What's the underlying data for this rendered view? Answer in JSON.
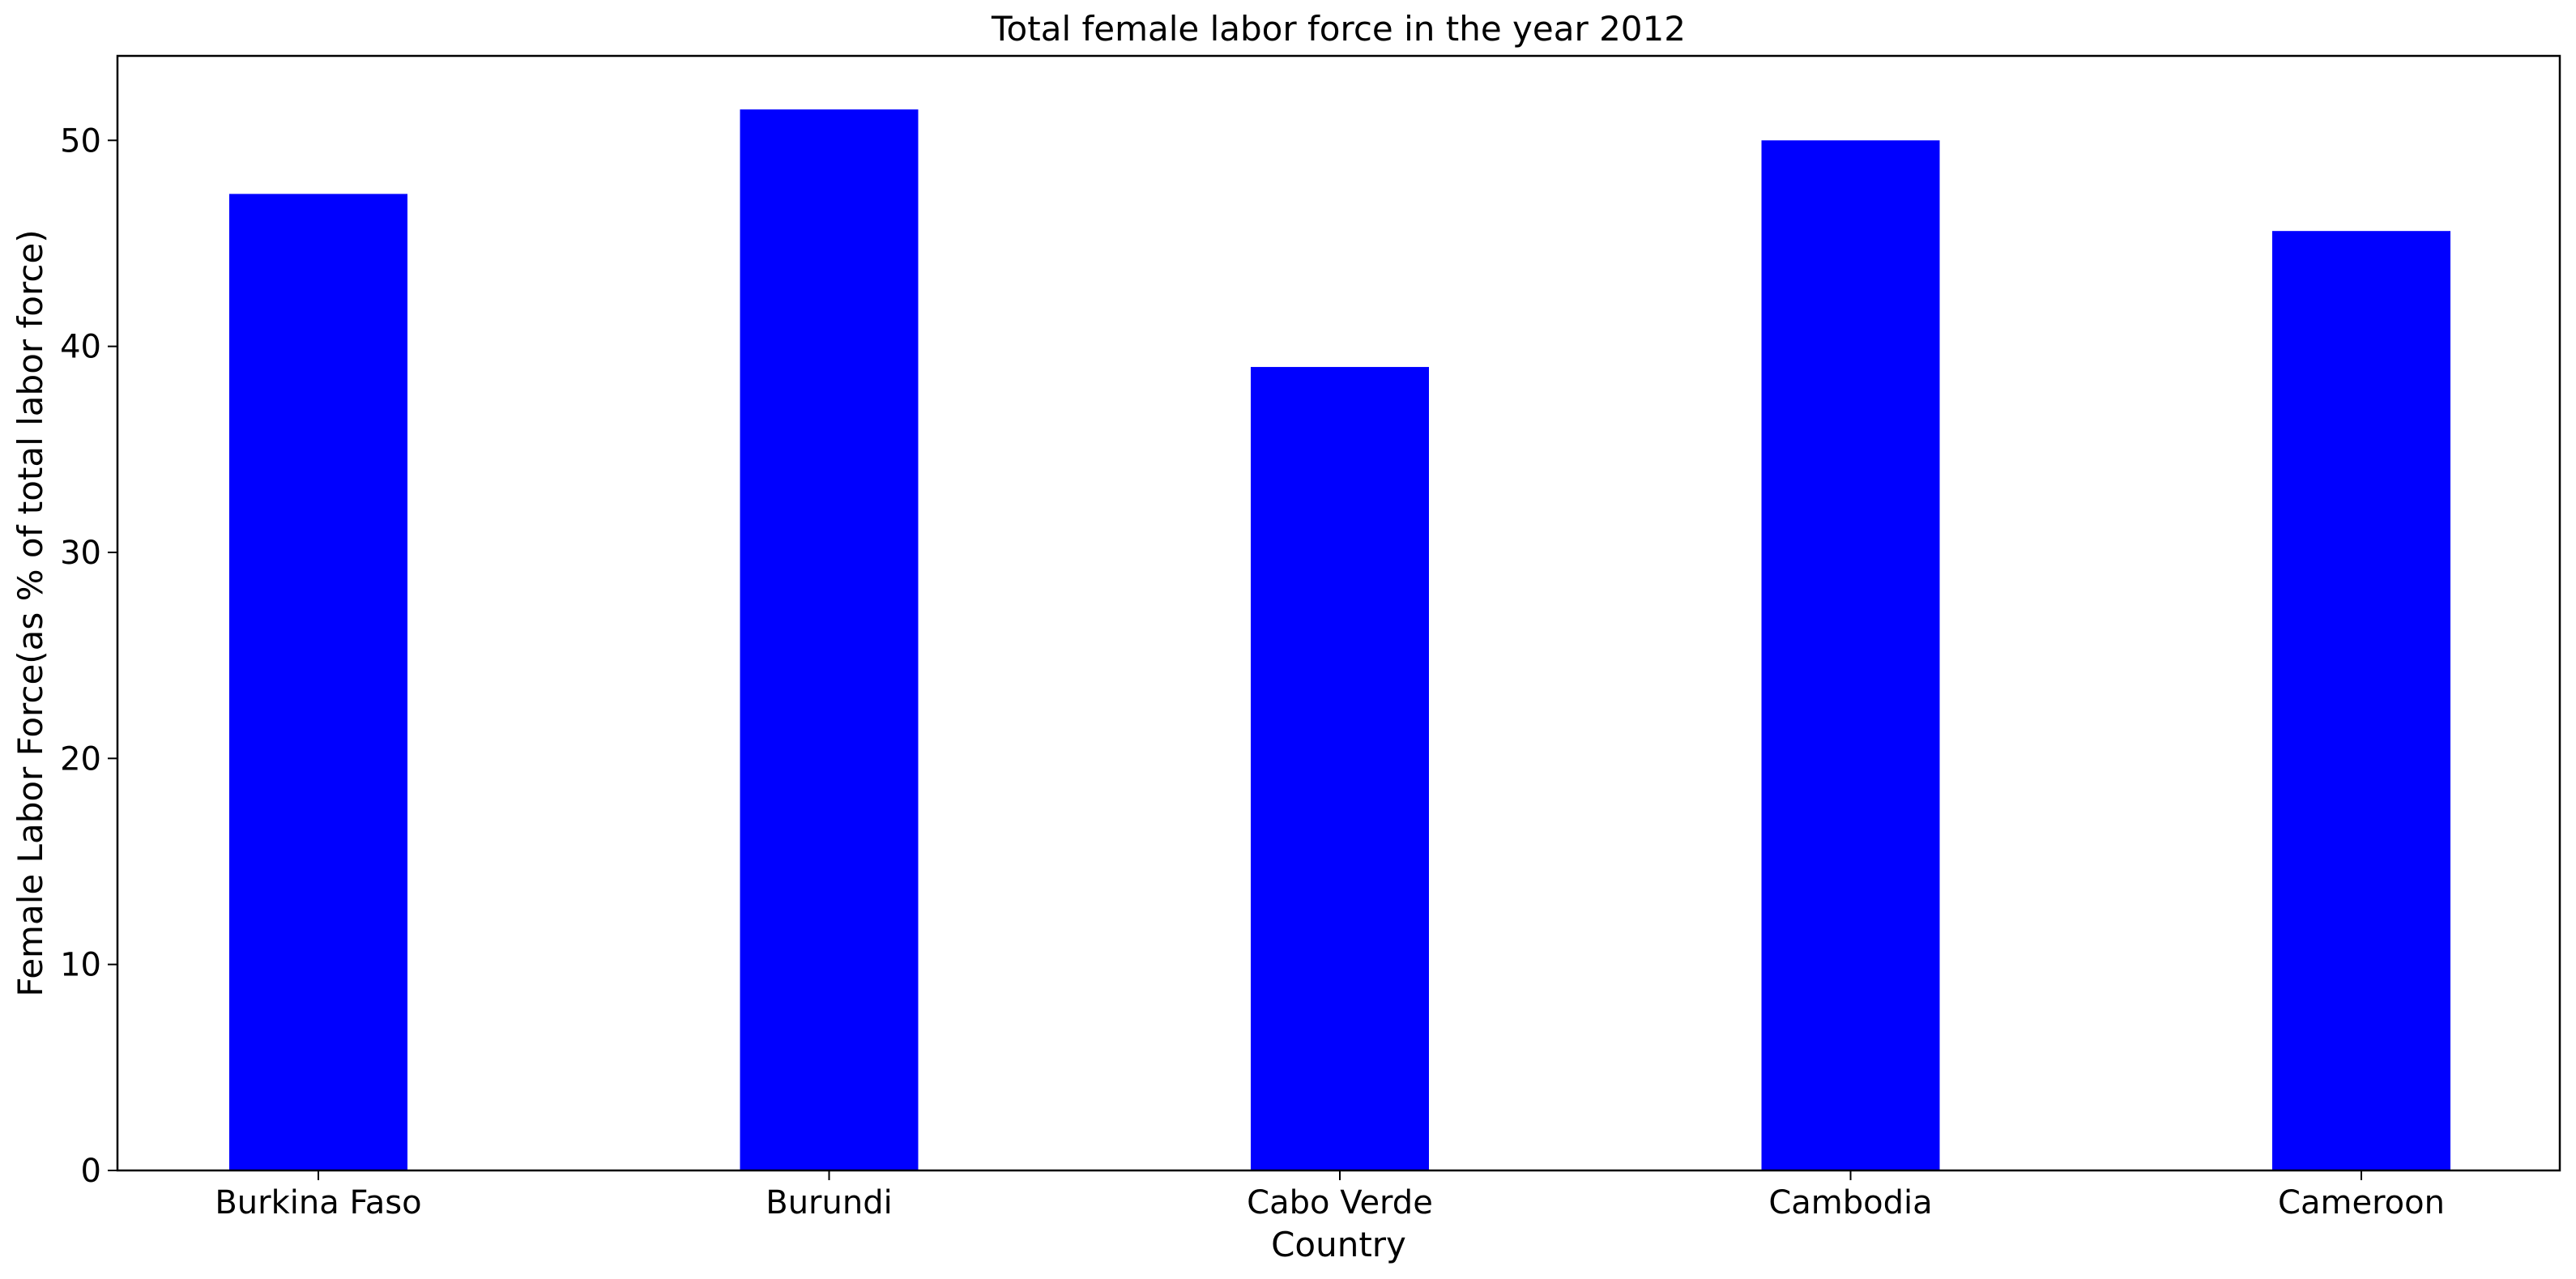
{
  "chart_data": {
    "type": "bar",
    "title": "Total female labor force in the year 2012",
    "xlabel": "Country",
    "ylabel": "Female Labor Force(as % of total labor force)",
    "categories": [
      "Burkina Faso",
      "Burundi",
      "Cabo Verde",
      "Cambodia",
      "Cameroon"
    ],
    "values": [
      47.4,
      51.5,
      39.0,
      50.0,
      45.6
    ],
    "ylim": [
      0,
      54.1
    ],
    "yticks": [
      0,
      10,
      20,
      30,
      40,
      50
    ],
    "grid": false,
    "bar_color": "#0000ff"
  }
}
